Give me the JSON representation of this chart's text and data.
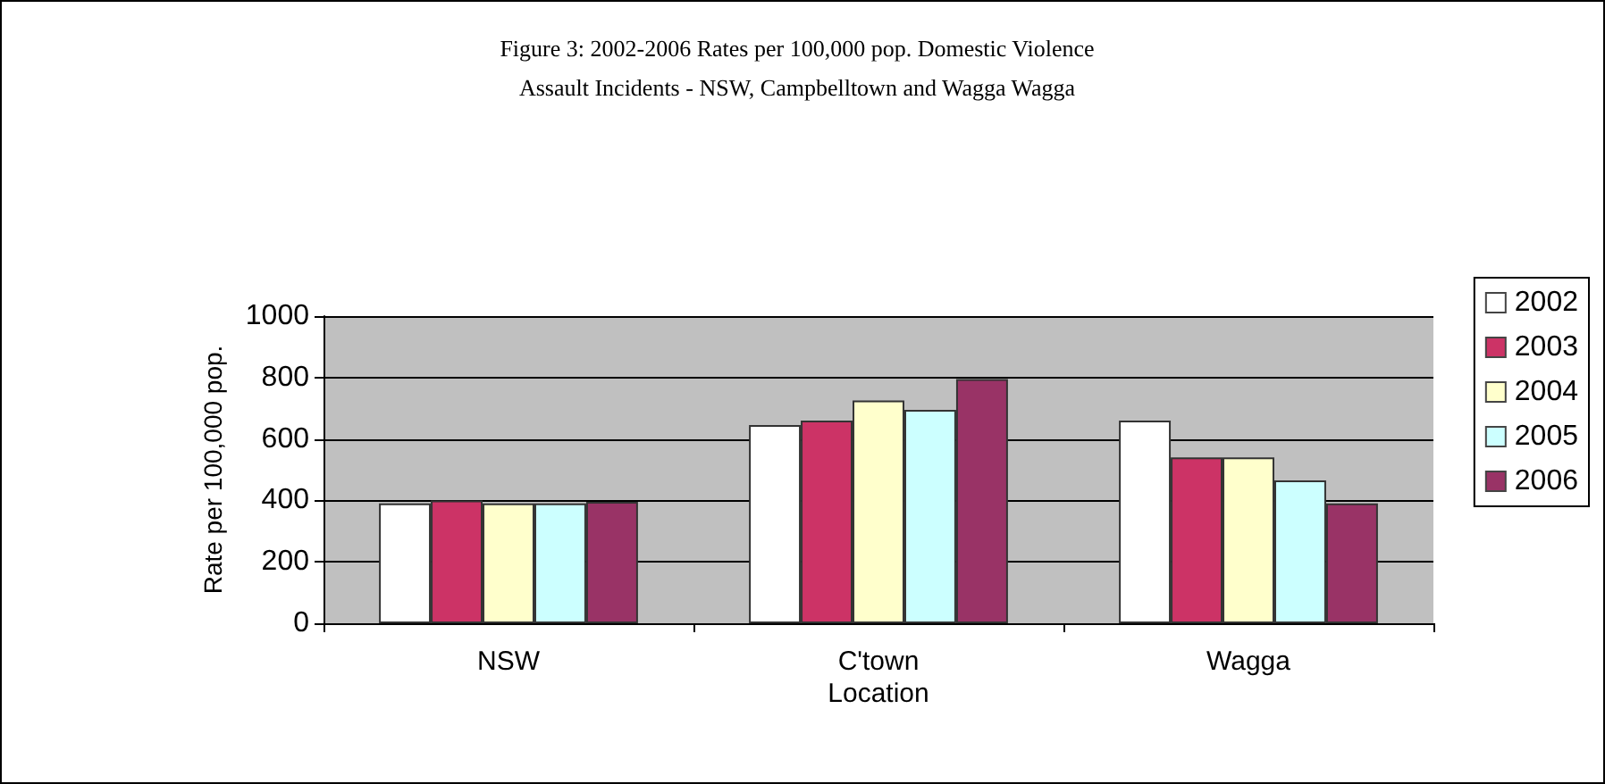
{
  "chart_data": {
    "type": "bar",
    "title": "Figure 3: 2002-2006 Rates per 100,000 pop. Domestic Violence\nAssault Incidents - NSW, Campbelltown and Wagga Wagga",
    "xlabel": "Location",
    "ylabel": "Rate per 100,000 pop.",
    "categories": [
      "NSW",
      "C'town",
      "Wagga"
    ],
    "series": [
      {
        "name": "2002",
        "color": "#ffffff",
        "values": [
          390,
          645,
          660
        ]
      },
      {
        "name": "2003",
        "color": "#cc3366",
        "values": [
          400,
          660,
          540
        ]
      },
      {
        "name": "2004",
        "color": "#ffffcc",
        "values": [
          390,
          725,
          540
        ]
      },
      {
        "name": "2005",
        "color": "#ccffff",
        "values": [
          390,
          695,
          465
        ]
      },
      {
        "name": "2006",
        "color": "#993366",
        "values": [
          395,
          795,
          390
        ]
      }
    ],
    "ylim": [
      0,
      1000
    ],
    "yticks": [
      0,
      200,
      400,
      600,
      800,
      1000
    ],
    "grid": "y",
    "legend": "right"
  }
}
